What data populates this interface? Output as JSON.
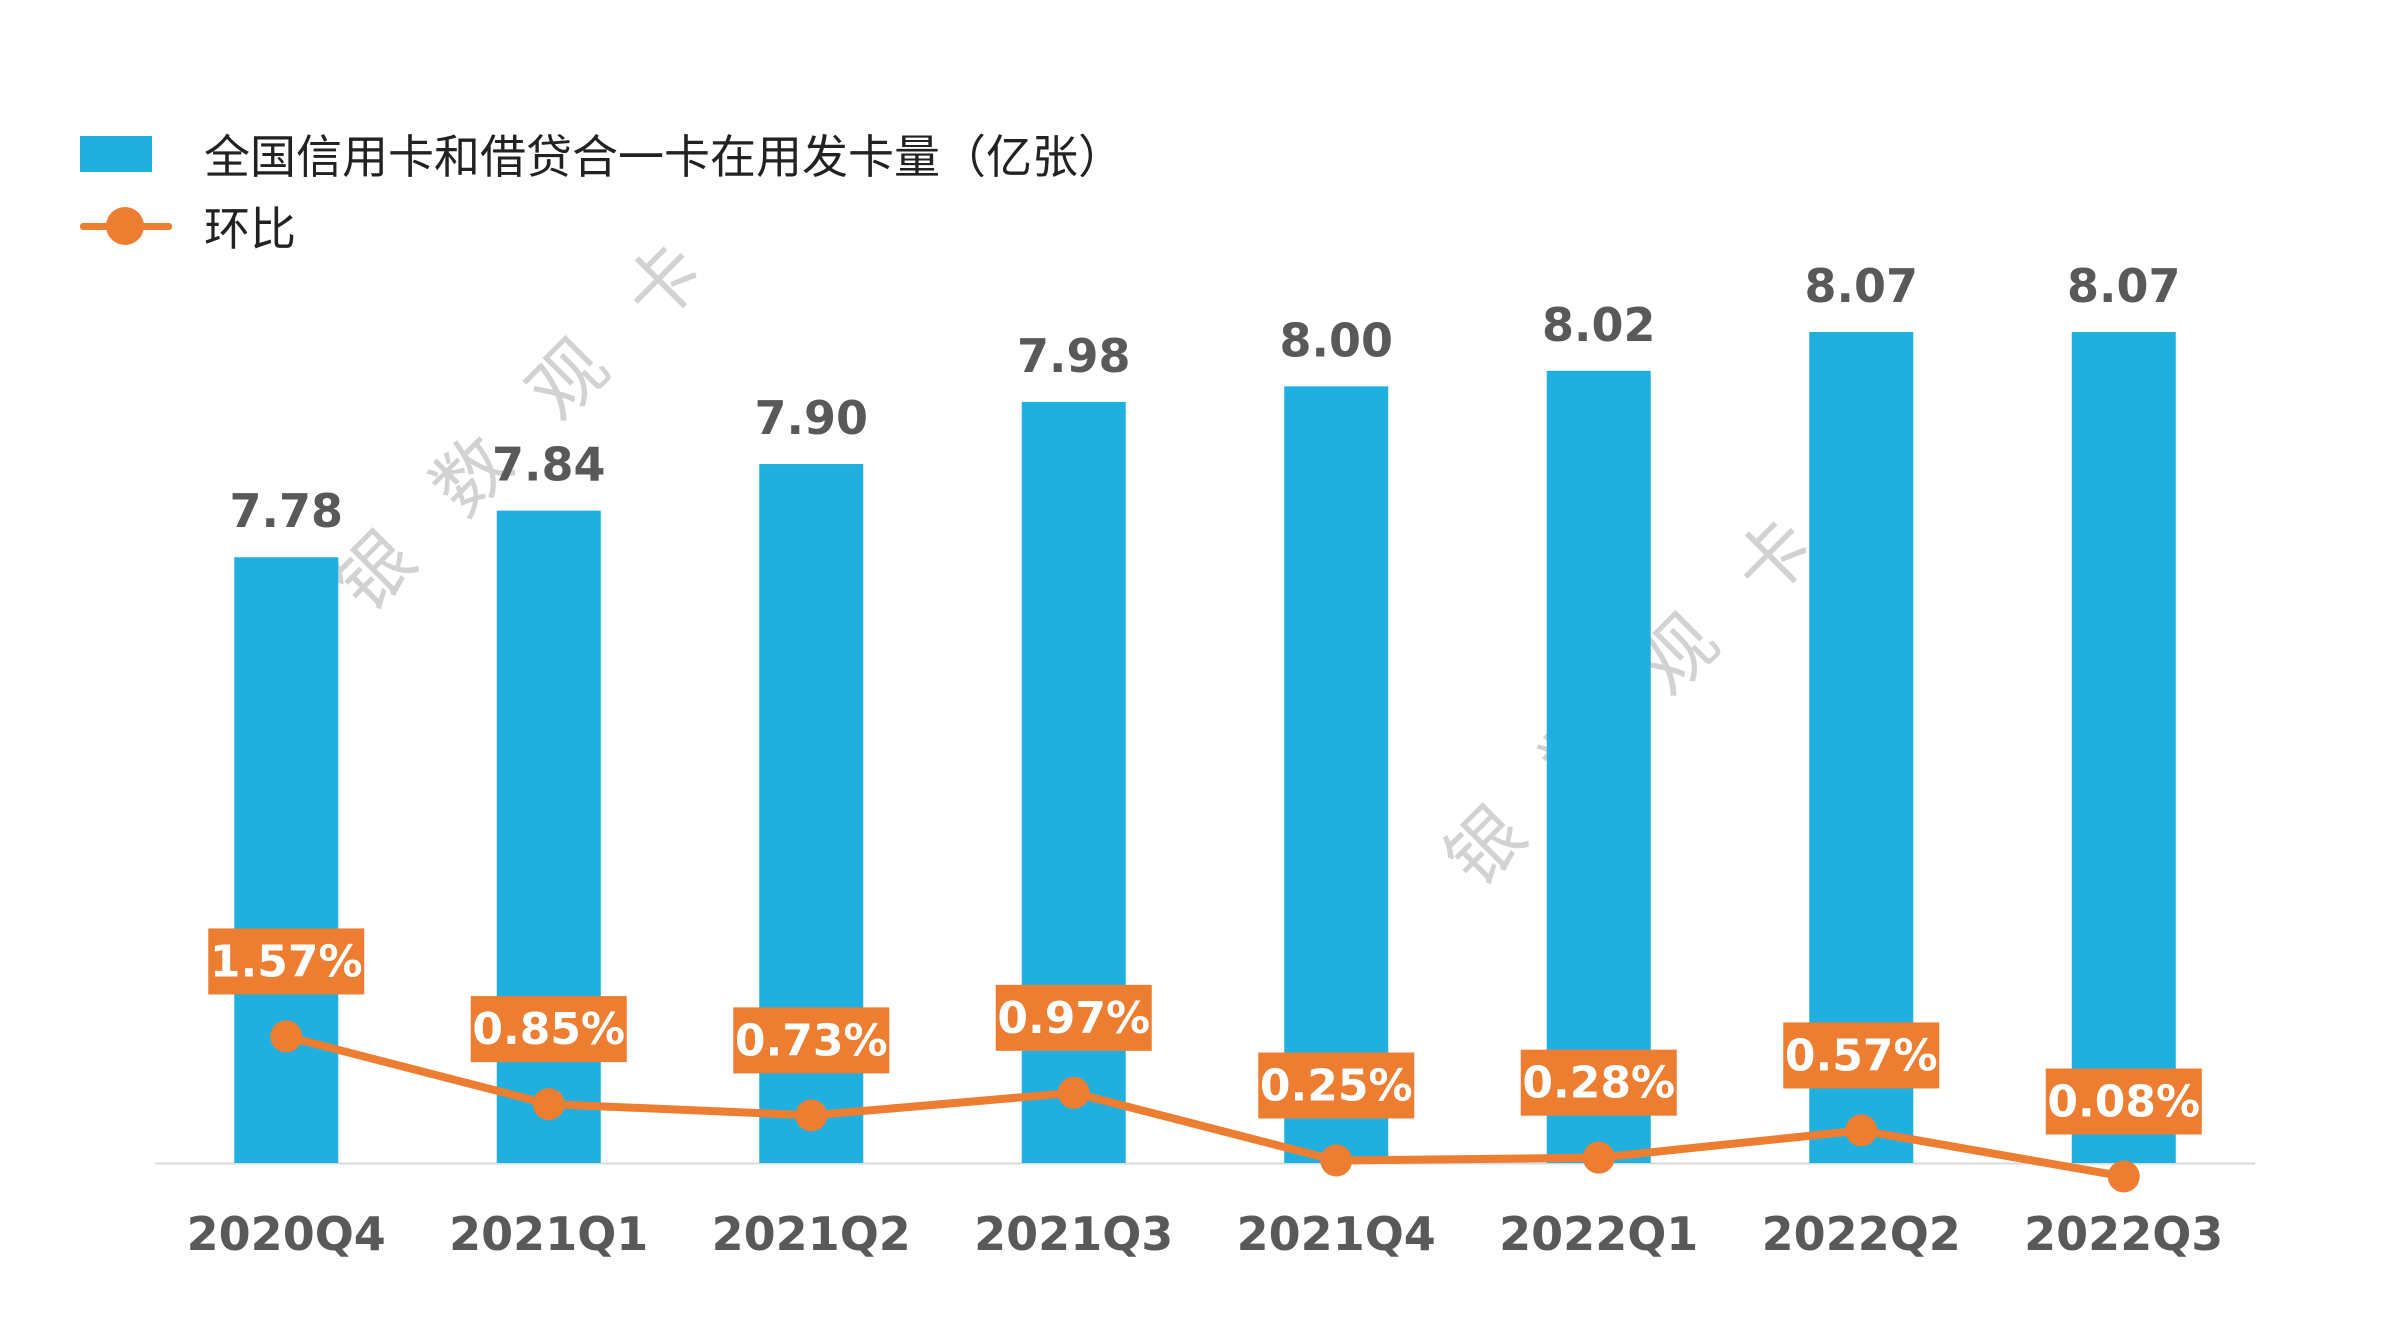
{
  "chart_data": {
    "type": "bar",
    "categories": [
      "2020Q4",
      "2021Q1",
      "2021Q2",
      "2021Q3",
      "2021Q4",
      "2022Q1",
      "2022Q2",
      "2022Q3"
    ],
    "series": [
      {
        "name": "全国信用卡和借贷合一卡在用发卡量（亿张）",
        "kind": "bar",
        "values": [
          7.78,
          7.84,
          7.9,
          7.98,
          8.0,
          8.02,
          8.07,
          8.07
        ],
        "labels": [
          "7.78",
          "7.84",
          "7.90",
          "7.98",
          "8.00",
          "8.02",
          "8.07",
          "8.07"
        ]
      },
      {
        "name": "环比",
        "kind": "line",
        "values": [
          1.57,
          0.85,
          0.73,
          0.97,
          0.25,
          0.28,
          0.57,
          0.08
        ],
        "labels": [
          "1.57%",
          "0.85%",
          "0.73%",
          "0.97%",
          "0.25%",
          "0.28%",
          "0.57%",
          "0.08%"
        ]
      }
    ],
    "legend_position": "top-left",
    "grid": false
  },
  "colors": {
    "bar": "#1FB0E0",
    "line": "#ED7D31",
    "bar_label": "#595959",
    "axis_label": "#595959",
    "watermark": "#D2D2D2"
  },
  "watermark_text": "银数观卡"
}
